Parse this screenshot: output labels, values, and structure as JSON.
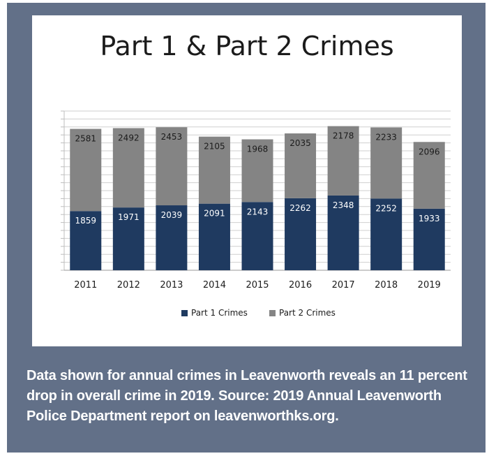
{
  "chart_data": {
    "type": "bar",
    "stacked": true,
    "title": "Part 1 & Part 2 Crimes",
    "categories": [
      "2011",
      "2012",
      "2013",
      "2014",
      "2015",
      "2016",
      "2017",
      "2018",
      "2019"
    ],
    "series": [
      {
        "name": "Part 1 Crimes",
        "color": "#1f3a60",
        "values": [
          1859,
          1971,
          2039,
          2091,
          2143,
          2262,
          2348,
          2252,
          1933
        ]
      },
      {
        "name": "Part 2 Crimes",
        "color": "#848484",
        "values": [
          2581,
          2492,
          2453,
          2105,
          1968,
          2035,
          2178,
          2233,
          2096
        ]
      }
    ],
    "ylim": [
      0,
      5000
    ],
    "grid": true,
    "legend": "bottom"
  },
  "caption": "Data shown for annual crimes in Leavenworth reveals an 11 percent drop in overall crime in 2019. Source: 2019 Annual Leavenworth Police Department report on leavenworthks.org."
}
